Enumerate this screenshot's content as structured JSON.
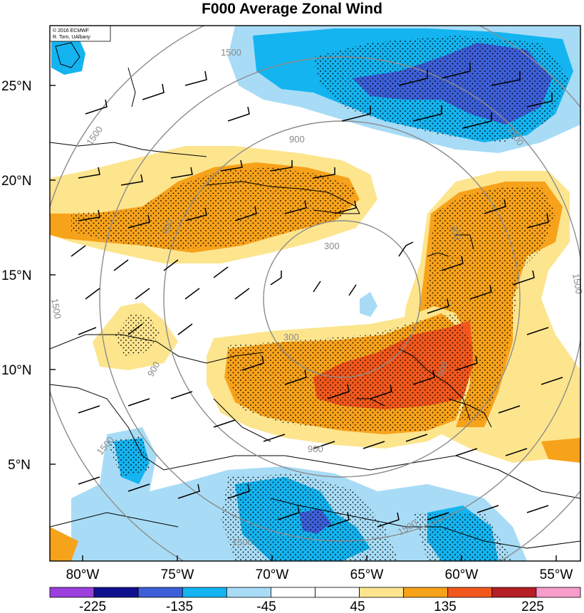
{
  "title": "F000 Average Zonal Wind",
  "credit": [
    "© 2016 ECMWF",
    "R. Torn, UAlbany"
  ],
  "lat_labels": [
    "25°N",
    "20°N",
    "15°N",
    "10°N",
    "5°N"
  ],
  "lon_labels": [
    "80°W",
    "75°W",
    "70°W",
    "65°W",
    "60°W",
    "55°W"
  ],
  "colorbar": {
    "labels": [
      "-225",
      "-135",
      "-45",
      "45",
      "135",
      "225"
    ],
    "colors": [
      "#9a3fdc",
      "#10108f",
      "#3d5fd8",
      "#14b4f0",
      "#a8dcf6",
      "#ffffff",
      "#ffffff",
      "#fde58e",
      "#f7a21b",
      "#f2581d",
      "#b41e24",
      "#f79ccb"
    ]
  },
  "contour_labels": [
    "1500",
    "1500",
    "900",
    "300",
    "900",
    "1500",
    "300",
    "900",
    "1500",
    "900",
    "1500",
    "900",
    "1500",
    "1500",
    "900",
    "1500"
  ],
  "fill_colors": {
    "light_yellow": "#fde58e",
    "orange": "#f7a21b",
    "red": "#f2581d",
    "light_blue": "#a8dcf6",
    "blue": "#14b4f0",
    "mid_blue": "#3d5fd8",
    "dark_blue": "#10108f"
  }
}
